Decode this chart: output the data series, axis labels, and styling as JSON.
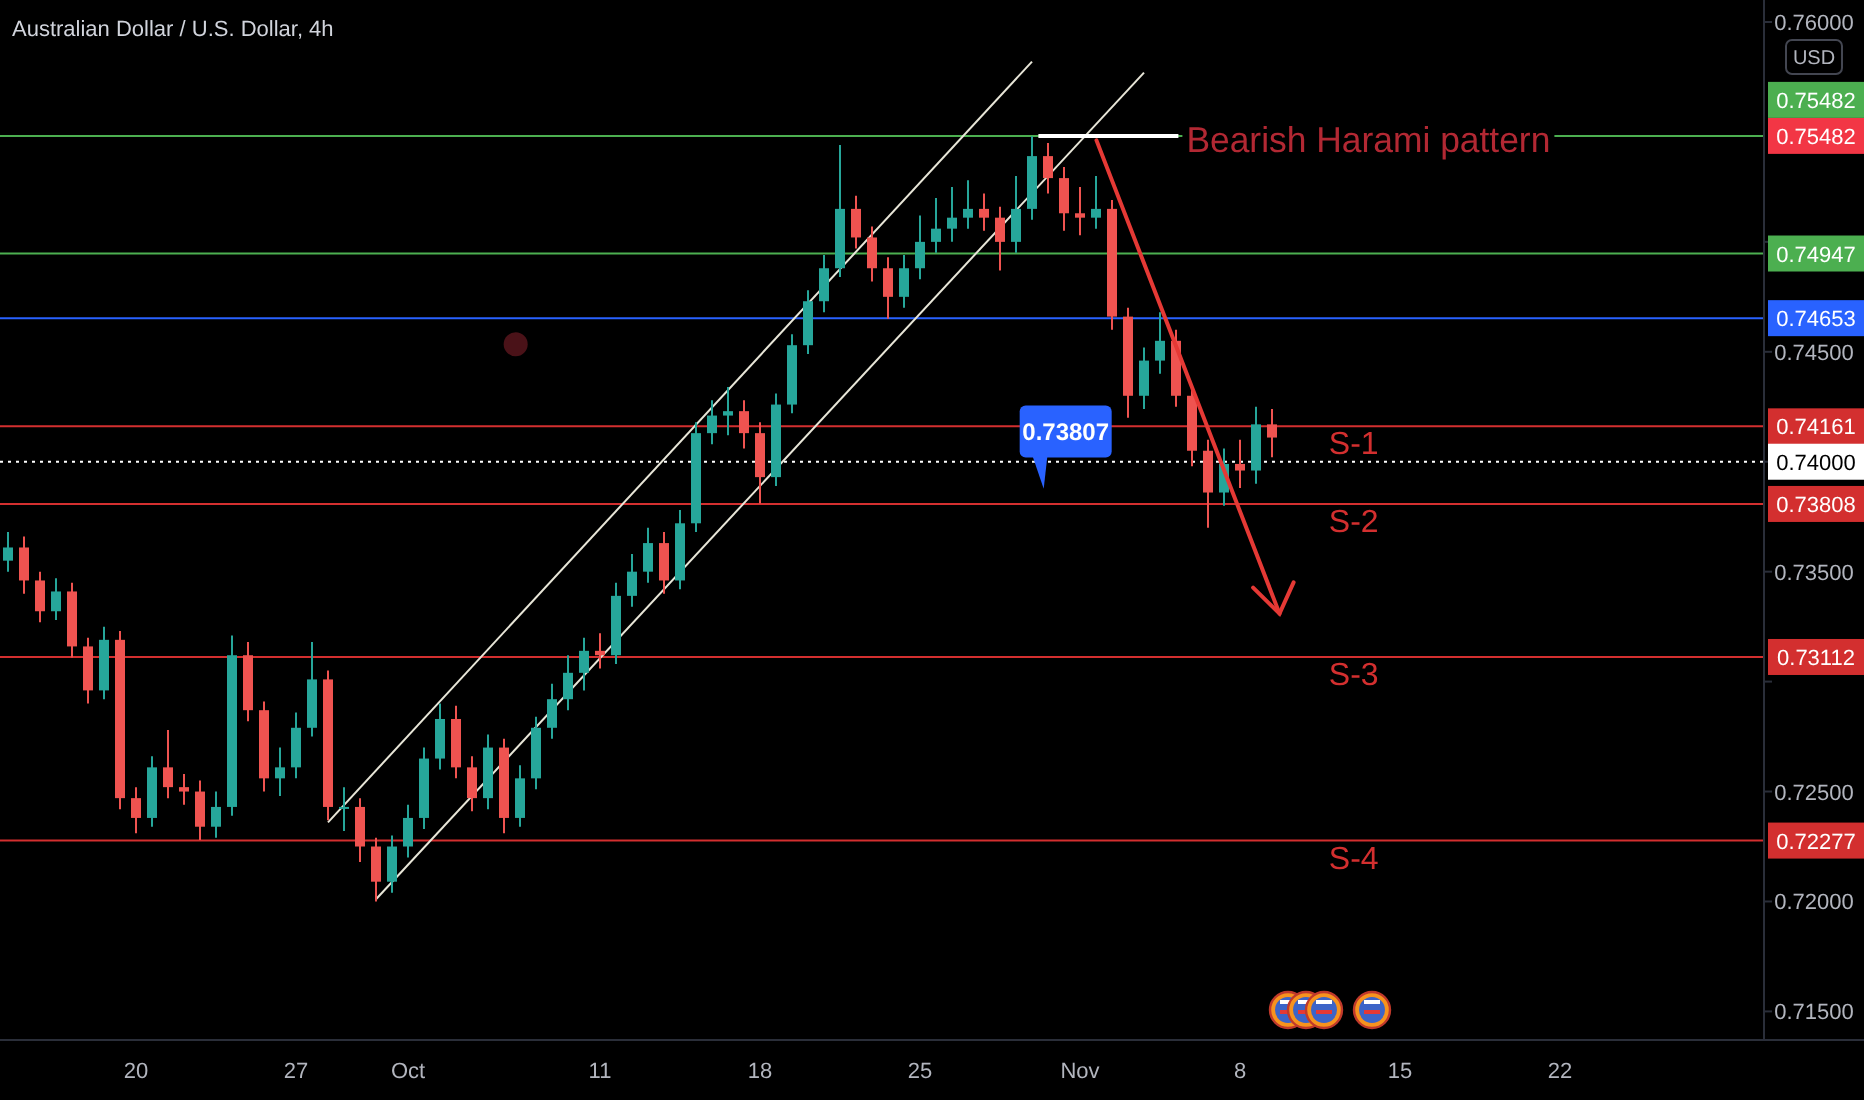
{
  "chart_data": {
    "type": "candlestick",
    "title": "Australian Dollar / U.S. Dollar, 4h",
    "ylabel": "USD",
    "categories": [
      null,
      null,
      null,
      null,
      null,
      null,
      null,
      null,
      "20",
      null,
      null,
      null,
      null,
      null,
      null,
      null,
      null,
      null,
      "27",
      null,
      null,
      null,
      null,
      null,
      null,
      "Oct",
      null,
      null,
      null,
      null,
      null,
      null,
      null,
      null,
      null,
      null,
      null,
      "11",
      null,
      null,
      null,
      null,
      null,
      null,
      null,
      null,
      null,
      "18",
      null,
      null,
      null,
      null,
      null,
      null,
      null,
      null,
      null,
      "25",
      null,
      null,
      null,
      null,
      null,
      null,
      null,
      null,
      null,
      "Nov",
      null,
      null,
      null,
      null,
      null,
      null,
      null,
      null,
      null,
      "8",
      null,
      null,
      null,
      null,
      null,
      null,
      null,
      null,
      null,
      "15",
      null,
      null,
      null,
      null,
      null,
      null,
      null,
      null,
      null,
      "22",
      null,
      null,
      null,
      null,
      null,
      null,
      null,
      null,
      null,
      null,
      null,
      null
    ],
    "ohlc": [
      [
        0.7355,
        0.7368,
        0.735,
        0.7361
      ],
      [
        0.7361,
        0.7366,
        0.734,
        0.7346
      ],
      [
        0.7346,
        0.735,
        0.7327,
        0.7332
      ],
      [
        0.7332,
        0.7347,
        0.7328,
        0.7341
      ],
      [
        0.7341,
        0.7345,
        0.7311,
        0.7316
      ],
      [
        0.7316,
        0.732,
        0.729,
        0.7296
      ],
      [
        0.7296,
        0.7325,
        0.7292,
        0.7319
      ],
      [
        0.7319,
        0.7323,
        0.7242,
        0.7247
      ],
      [
        0.7247,
        0.7252,
        0.7231,
        0.7238
      ],
      [
        0.7238,
        0.7266,
        0.7234,
        0.7261
      ],
      [
        0.7261,
        0.7278,
        0.7247,
        0.7252
      ],
      [
        0.7252,
        0.7258,
        0.7244,
        0.725
      ],
      [
        0.725,
        0.7255,
        0.7228,
        0.7234
      ],
      [
        0.7234,
        0.725,
        0.7229,
        0.7243
      ],
      [
        0.7243,
        0.7321,
        0.7239,
        0.7312
      ],
      [
        0.7312,
        0.7318,
        0.7282,
        0.7287
      ],
      [
        0.7287,
        0.7291,
        0.725,
        0.7256
      ],
      [
        0.7256,
        0.727,
        0.7248,
        0.7261
      ],
      [
        0.7261,
        0.7286,
        0.7256,
        0.7279
      ],
      [
        0.7279,
        0.7318,
        0.7275,
        0.7301
      ],
      [
        0.7301,
        0.7305,
        0.7237,
        0.7243
      ],
      [
        0.7243,
        0.7252,
        0.7232,
        0.7243
      ],
      [
        0.7243,
        0.7247,
        0.7218,
        0.7225
      ],
      [
        0.7225,
        0.7229,
        0.72,
        0.7209
      ],
      [
        0.7209,
        0.723,
        0.7204,
        0.7225
      ],
      [
        0.7225,
        0.7244,
        0.722,
        0.7238
      ],
      [
        0.7238,
        0.727,
        0.7233,
        0.7265
      ],
      [
        0.7265,
        0.729,
        0.726,
        0.7283
      ],
      [
        0.7283,
        0.7289,
        0.7256,
        0.7261
      ],
      [
        0.7261,
        0.7266,
        0.7241,
        0.7247
      ],
      [
        0.7247,
        0.7276,
        0.7242,
        0.727
      ],
      [
        0.727,
        0.7274,
        0.7231,
        0.7238
      ],
      [
        0.7238,
        0.7262,
        0.7234,
        0.7256
      ],
      [
        0.7256,
        0.7284,
        0.7251,
        0.7279
      ],
      [
        0.7279,
        0.7299,
        0.7274,
        0.7292
      ],
      [
        0.7292,
        0.7312,
        0.7287,
        0.7304
      ],
      [
        0.7304,
        0.732,
        0.7296,
        0.7314
      ],
      [
        0.7314,
        0.7322,
        0.7306,
        0.7312
      ],
      [
        0.7312,
        0.7345,
        0.7308,
        0.7339
      ],
      [
        0.7339,
        0.7358,
        0.7334,
        0.735
      ],
      [
        0.735,
        0.737,
        0.7345,
        0.7363
      ],
      [
        0.7363,
        0.7368,
        0.734,
        0.7346
      ],
      [
        0.7346,
        0.7378,
        0.7342,
        0.7372
      ],
      [
        0.7372,
        0.7418,
        0.7368,
        0.7413
      ],
      [
        0.7413,
        0.7428,
        0.7408,
        0.7421
      ],
      [
        0.7421,
        0.7434,
        0.7412,
        0.7423
      ],
      [
        0.7423,
        0.7428,
        0.7406,
        0.7413
      ],
      [
        0.7413,
        0.7418,
        0.7381,
        0.7393
      ],
      [
        0.7393,
        0.7431,
        0.7389,
        0.7426
      ],
      [
        0.7426,
        0.7458,
        0.7422,
        0.7453
      ],
      [
        0.7453,
        0.7478,
        0.7449,
        0.7473
      ],
      [
        0.7473,
        0.7494,
        0.7468,
        0.7488
      ],
      [
        0.7488,
        0.7544,
        0.7484,
        0.7515
      ],
      [
        0.7515,
        0.7521,
        0.7497,
        0.7502
      ],
      [
        0.7502,
        0.7507,
        0.7482,
        0.7488
      ],
      [
        0.7488,
        0.7493,
        0.7465,
        0.7475
      ],
      [
        0.7475,
        0.7494,
        0.747,
        0.7488
      ],
      [
        0.7488,
        0.7512,
        0.7483,
        0.75
      ],
      [
        0.75,
        0.752,
        0.7495,
        0.7506
      ],
      [
        0.7506,
        0.7525,
        0.75,
        0.7511
      ],
      [
        0.7511,
        0.7528,
        0.7506,
        0.7515
      ],
      [
        0.7515,
        0.7522,
        0.7505,
        0.7511
      ],
      [
        0.7511,
        0.7516,
        0.7487,
        0.75
      ],
      [
        0.75,
        0.753,
        0.7495,
        0.7515
      ],
      [
        0.7515,
        0.7548,
        0.751,
        0.7539
      ],
      [
        0.7539,
        0.7545,
        0.7522,
        0.7529
      ],
      [
        0.7529,
        0.7534,
        0.7505,
        0.7513
      ],
      [
        0.7513,
        0.7525,
        0.7503,
        0.7511
      ],
      [
        0.7511,
        0.753,
        0.7506,
        0.7515
      ],
      [
        0.7515,
        0.7519,
        0.746,
        0.7466
      ],
      [
        0.7466,
        0.747,
        0.742,
        0.743
      ],
      [
        0.743,
        0.7452,
        0.7424,
        0.7446
      ],
      [
        0.7446,
        0.7468,
        0.744,
        0.7455
      ],
      [
        0.7455,
        0.746,
        0.7425,
        0.743
      ],
      [
        0.743,
        0.7434,
        0.7398,
        0.7405
      ],
      [
        0.7405,
        0.741,
        0.737,
        0.7386
      ],
      [
        0.7386,
        0.7406,
        0.738,
        0.7399
      ],
      [
        0.7399,
        0.741,
        0.7388,
        0.7396
      ],
      [
        0.7396,
        0.7425,
        0.739,
        0.7417
      ],
      [
        0.7417,
        0.7424,
        0.7402,
        0.7411
      ],
      null,
      null,
      null,
      null,
      null,
      null,
      null,
      null,
      null,
      null,
      null,
      null,
      null,
      null,
      null,
      null,
      null,
      null,
      null,
      null,
      null,
      null,
      null,
      null,
      null,
      null,
      null,
      null,
      null,
      null
    ],
    "series": [
      {
        "type": "line",
        "color": "#e8e6d8",
        "values": [
          null,
          null,
          null,
          null,
          null,
          null,
          null,
          null,
          null,
          null,
          null,
          null,
          null,
          null,
          null,
          null,
          null,
          null,
          null,
          null,
          0.7236,
          null,
          null,
          null,
          null,
          null,
          null,
          null,
          null,
          null,
          null,
          null,
          null,
          null,
          null,
          null,
          null,
          null,
          null,
          null,
          null,
          null,
          null,
          null,
          null,
          null,
          null,
          null,
          null,
          null,
          null,
          null,
          null,
          null,
          null,
          null,
          null,
          null,
          null,
          null,
          null,
          null,
          null,
          null,
          0.7582,
          null,
          null,
          null,
          null,
          null,
          null,
          null,
          null,
          null,
          null,
          null,
          null,
          null,
          null,
          null,
          null,
          null,
          null,
          null,
          null,
          null,
          null,
          null,
          null,
          null,
          null,
          null,
          null,
          null,
          null,
          null,
          null,
          null,
          null,
          null,
          null,
          null,
          null,
          null,
          null,
          null,
          null,
          null,
          null,
          null
        ]
      },
      {
        "type": "line",
        "color": "#e8e6d8",
        "values": [
          null,
          null,
          null,
          null,
          null,
          null,
          null,
          null,
          null,
          null,
          null,
          null,
          null,
          null,
          null,
          null,
          null,
          null,
          null,
          null,
          null,
          null,
          null,
          0.7201,
          null,
          null,
          null,
          null,
          null,
          null,
          null,
          null,
          null,
          null,
          null,
          null,
          null,
          null,
          null,
          null,
          null,
          null,
          null,
          null,
          null,
          null,
          null,
          null,
          null,
          null,
          null,
          null,
          null,
          null,
          null,
          null,
          null,
          null,
          null,
          null,
          null,
          null,
          null,
          null,
          null,
          null,
          null,
          null,
          null,
          null,
          null,
          0.7577,
          null,
          null,
          null,
          null,
          null,
          null,
          null,
          null,
          null,
          null,
          null,
          null,
          null,
          null,
          null,
          null,
          null,
          null,
          null,
          null,
          null,
          null,
          null,
          null,
          null,
          null,
          null,
          null,
          null,
          null,
          null,
          null,
          null,
          null,
          null,
          null,
          null,
          null
        ]
      }
    ],
    "ylim": [
      0.7137,
      0.761
    ],
    "yticks": [
      {
        "value": 0.715,
        "label": "0.71500"
      },
      {
        "value": 0.72,
        "label": "0.72000"
      },
      {
        "value": 0.725,
        "label": "0.72500"
      },
      {
        "value": 0.73,
        "label": null
      },
      {
        "value": 0.735,
        "label": "0.73500"
      },
      {
        "value": 0.74,
        "label": null
      },
      {
        "value": 0.745,
        "label": "0.74500"
      },
      {
        "value": 0.75,
        "label": null
      },
      {
        "value": 0.76,
        "label": "0.76000"
      }
    ],
    "ref_lines": [
      {
        "axis": "y",
        "value": 0.75482,
        "color": "#4caf50",
        "label": "0.75482"
      },
      {
        "axis": "y",
        "value": 0.74947,
        "color": "#4caf50",
        "label": "0.74947"
      },
      {
        "axis": "y",
        "value": 0.74653,
        "color": "#2962ff",
        "label": "0.74653"
      },
      {
        "axis": "y",
        "value": 0.74161,
        "color": "#d32f2f",
        "label": "0.74161"
      },
      {
        "axis": "y",
        "value": 0.74,
        "color": "#ffffff",
        "line_style": "dotted",
        "label": "0.74000"
      },
      {
        "axis": "y",
        "value": 0.73808,
        "color": "#d32f2f",
        "label": "0.73808"
      },
      {
        "axis": "y",
        "value": 0.73112,
        "color": "#d32f2f",
        "label": "0.73112"
      },
      {
        "axis": "y",
        "value": 0.72277,
        "color": "#d32f2f",
        "label": "0.72277"
      }
    ],
    "annotations": [
      {
        "text": "Bearish Harami pattern",
        "y": 0.75482
      },
      "0.75482",
      "0.73807",
      {
        "text": "S-1",
        "y": 0.74161
      },
      {
        "text": "S-2",
        "y": 0.73808
      },
      {
        "text": "S-3",
        "y": 0.73112
      },
      {
        "text": "S-4",
        "y": 0.72277
      }
    ]
  }
}
